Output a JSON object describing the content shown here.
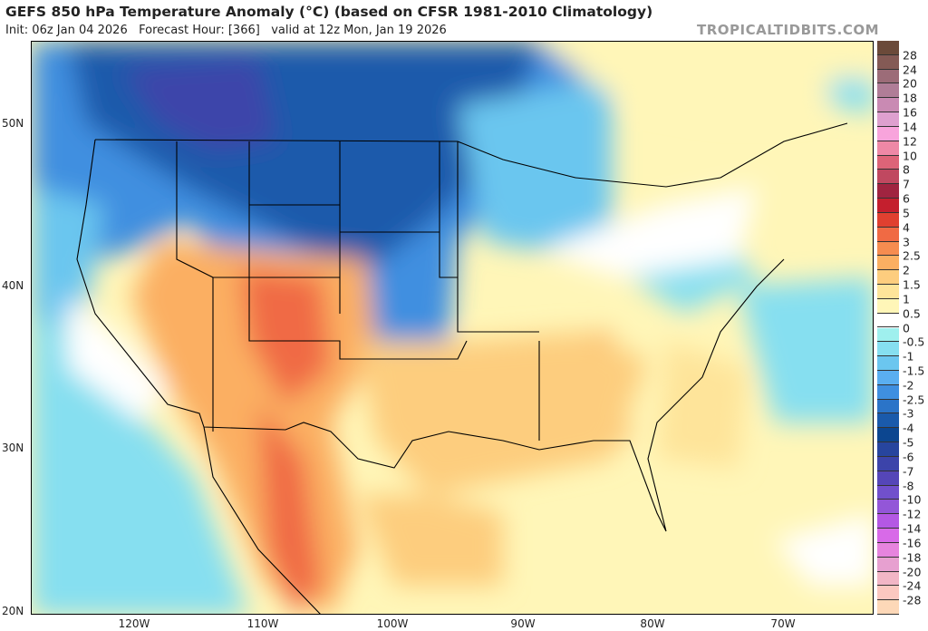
{
  "header": {
    "title": "GEFS 850 hPa Temperature Anomaly (°C) (based on CFSR 1981-2010 Climatology)",
    "subtitle": "Init: 06z Jan 04 2026   Forecast Hour: [366]   valid at 12z Mon, Jan 19 2026",
    "brand": "TROPICALTIDBITS.COM"
  },
  "map": {
    "latitude_labels": [
      "50N",
      "40N",
      "30N",
      "20N"
    ],
    "longitude_labels": [
      "120W",
      "110W",
      "100W",
      "90W",
      "80W",
      "70W"
    ]
  },
  "colorbar": {
    "labels": [
      "28",
      "24",
      "20",
      "18",
      "16",
      "14",
      "12",
      "10",
      "8",
      "7",
      "6",
      "5",
      "4",
      "3",
      "2.5",
      "2",
      "1.5",
      "1",
      "0.5",
      "0",
      "-0.5",
      "-1",
      "-1.5",
      "-2",
      "-2.5",
      "-3",
      "-4",
      "-5",
      "-6",
      "-7",
      "-8",
      "-10",
      "-12",
      "-14",
      "-16",
      "-18",
      "-20",
      "-24",
      "-28"
    ],
    "colors": [
      "#6b4a3a",
      "#845a55",
      "#9c6c78",
      "#b07d97",
      "#c98ab3",
      "#dea0cf",
      "#f8a4dc",
      "#ee88a6",
      "#dd6478",
      "#c04860",
      "#a02440",
      "#c41f2e",
      "#e04030",
      "#f06a44",
      "#f68c50",
      "#fbaf62",
      "#fdcd7e",
      "#fee49a",
      "#fff6b8",
      "#ffffff",
      "#9ff0ee",
      "#86dff0",
      "#6bc6ef",
      "#5aaef0",
      "#3f8fe0",
      "#2b74c8",
      "#1a5aab",
      "#0c4690",
      "#27459e",
      "#3c44aa",
      "#5546b8",
      "#7150cc",
      "#9356d8",
      "#b458e4",
      "#d86ae8",
      "#e684de",
      "#e7a0d0",
      "#f2b6c6",
      "#fbc8c0",
      "#fdd8b8"
    ]
  }
}
